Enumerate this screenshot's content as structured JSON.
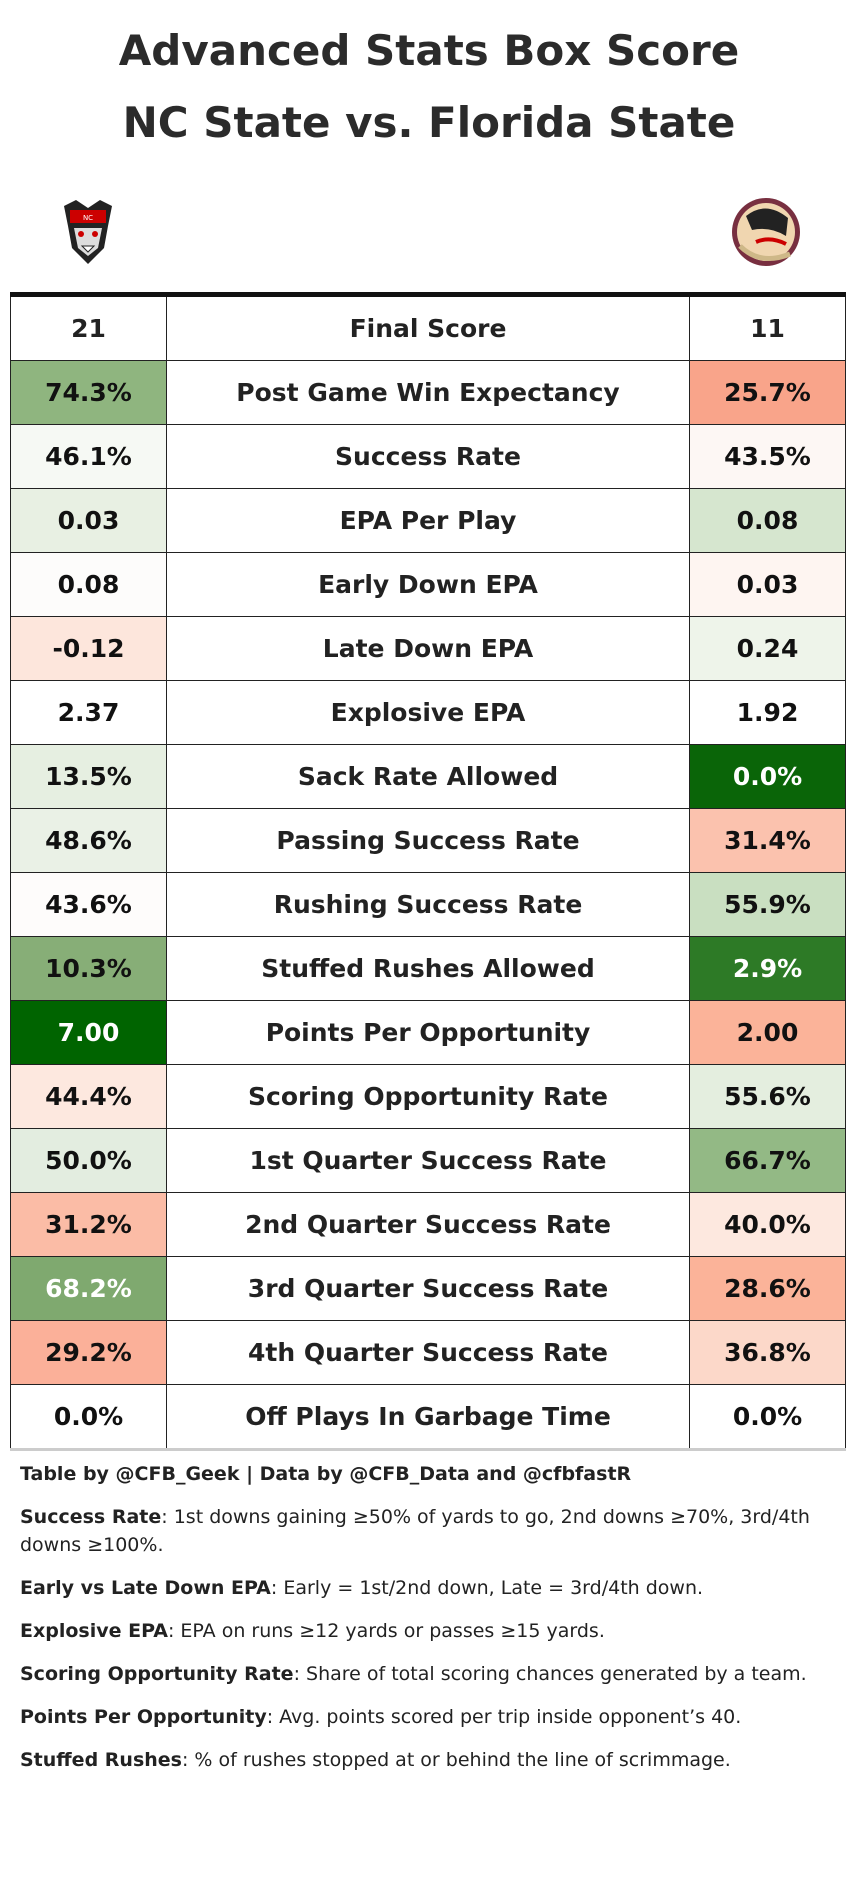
{
  "header": {
    "title_line1": "Advanced Stats Box Score",
    "title_line2": "NC State vs. Florida State"
  },
  "table": {
    "header": {
      "left": "21",
      "stat": "Final Score",
      "right": "11"
    },
    "rows": [
      {
        "left": "74.3%",
        "stat": "Post Game Win Expectancy",
        "right": "25.7%",
        "left_color": "#8fb57f",
        "right_color": "#f9a48a"
      },
      {
        "left": "46.1%",
        "stat": "Success Rate",
        "right": "43.5%",
        "left_color": "#f6f9f4",
        "right_color": "#fdf7f4"
      },
      {
        "left": "0.03",
        "stat": "EPA Per Play",
        "right": "0.08",
        "left_color": "#e8f0e3",
        "right_color": "#d6e6cf"
      },
      {
        "left": "0.08",
        "stat": "Early Down EPA",
        "right": "0.03",
        "left_color": "#fdfcfb",
        "right_color": "#fef5f1"
      },
      {
        "left": "-0.12",
        "stat": "Late Down EPA",
        "right": "0.24",
        "left_color": "#fde6dc",
        "right_color": "#eef4ea"
      },
      {
        "left": "2.37",
        "stat": "Explosive EPA",
        "right": "1.92",
        "left_color": "#ffffff",
        "right_color": "#ffffff"
      },
      {
        "left": "13.5%",
        "stat": "Sack Rate Allowed",
        "right": "0.0%",
        "left_color": "#e6efe1",
        "right_color": "#0a6508"
      },
      {
        "left": "48.6%",
        "stat": "Passing Success Rate",
        "right": "31.4%",
        "left_color": "#eaf1e6",
        "right_color": "#fbc2ae"
      },
      {
        "left": "43.6%",
        "stat": "Rushing Success Rate",
        "right": "55.9%",
        "left_color": "#fefcfb",
        "right_color": "#c9dfc1"
      },
      {
        "left": "10.3%",
        "stat": "Stuffed Rushes Allowed",
        "right": "2.9%",
        "left_color": "#87ae77",
        "right_color": "#2d7a26"
      },
      {
        "left": "7.00",
        "stat": "Points Per Opportunity",
        "right": "2.00",
        "left_color": "#006400",
        "right_color": "#fbb399"
      },
      {
        "left": "44.4%",
        "stat": "Scoring Opportunity Rate",
        "right": "55.6%",
        "left_color": "#fde8df",
        "right_color": "#e4eedf"
      },
      {
        "left": "50.0%",
        "stat": "1st Quarter Success Rate",
        "right": "66.7%",
        "left_color": "#e3ede0",
        "right_color": "#93b985"
      },
      {
        "left": "31.2%",
        "stat": "2nd Quarter Success Rate",
        "right": "40.0%",
        "left_color": "#fbbca6",
        "right_color": "#fde8df"
      },
      {
        "left": "68.2%",
        "stat": "3rd Quarter Success Rate",
        "right": "28.6%",
        "left_color": "#7fa96f",
        "right_color": "#fbb399"
      },
      {
        "left": "29.2%",
        "stat": "4th Quarter Success Rate",
        "right": "36.8%",
        "left_color": "#fbb099",
        "right_color": "#fcd8c9"
      },
      {
        "left": "0.0%",
        "stat": "Off Plays In Garbage Time",
        "right": "0.0%",
        "left_color": "#ffffff",
        "right_color": "#ffffff"
      }
    ]
  },
  "notes": [
    {
      "term": "Table by @CFB_Geek | Data by @CFB_Data and @cfbfastR"
    },
    {
      "term": "Success Rate",
      "text": ": 1st downs gaining ≥50% of yards to go, 2nd downs ≥70%, 3rd/4th downs ≥100%."
    },
    {
      "term": "Early vs Late Down EPA",
      "text": ": Early = 1st/2nd down, Late = 3rd/4th down."
    },
    {
      "term": "Explosive EPA",
      "text": ": EPA on runs ≥12 yards or passes ≥15 yards."
    },
    {
      "term": "Scoring Opportunity Rate",
      "text": ": Share of total scoring chances generated by a team."
    },
    {
      "term": "Points Per Opportunity",
      "text": ": Avg. points scored per trip inside opponent’s 40."
    },
    {
      "term": "Stuffed Rushes",
      "text": ": % of rushes stopped at or behind the line of scrimmage."
    }
  ]
}
